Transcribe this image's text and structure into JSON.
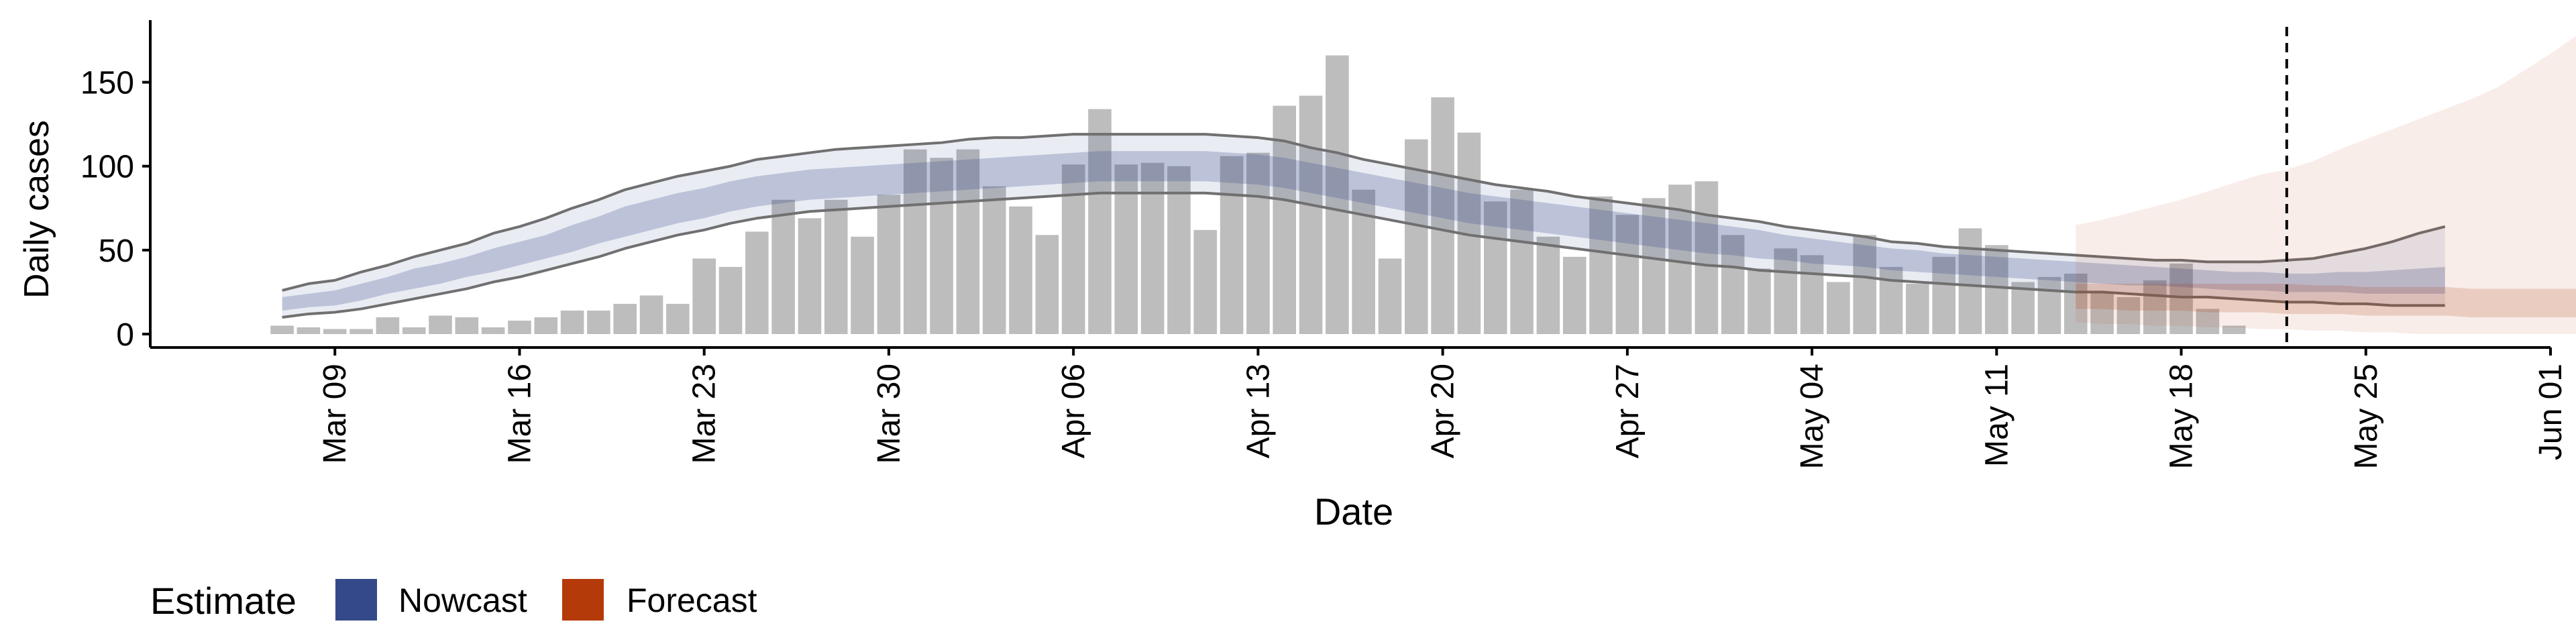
{
  "chart_data": {
    "type": "bar",
    "xlabel": "Date",
    "ylabel": "Daily cases",
    "x_ticks": [
      "Mar 09",
      "Mar 16",
      "Mar 23",
      "Mar 30",
      "Apr 06",
      "Apr 13",
      "Apr 20",
      "Apr 27",
      "May 04",
      "May 11",
      "May 18",
      "May 25",
      "Jun 01"
    ],
    "y_ticks": [
      0,
      50,
      100,
      150
    ],
    "ylim": [
      -8,
      187
    ],
    "xlim": [
      "2020-03-02",
      "2020-06-01"
    ],
    "forecast_date": "2020-05-22",
    "grid": false,
    "legend": {
      "title": "Estimate",
      "position": "bottom-left",
      "entries": [
        {
          "label": "Nowcast",
          "color": "#34498a"
        },
        {
          "label": "Forecast",
          "color": "#b43a0a"
        }
      ]
    },
    "colors": {
      "bars": "#bdbdbd",
      "nowcast": "#34498a",
      "forecast": "#b43a0a",
      "outline": "#707070"
    },
    "observed": {
      "start_date": "2020-03-07",
      "values": [
        5,
        4,
        3,
        3,
        10,
        4,
        11,
        10,
        4,
        8,
        10,
        14,
        14,
        18,
        23,
        18,
        45,
        40,
        61,
        80,
        69,
        80,
        58,
        83,
        110,
        105,
        110,
        88,
        76,
        59,
        101,
        134,
        101,
        102,
        100,
        62,
        106,
        108,
        136,
        142,
        166,
        86,
        45,
        116,
        141,
        120,
        79,
        86,
        58,
        46,
        82,
        71,
        81,
        89,
        91,
        59,
        39,
        51,
        47,
        31,
        59,
        40,
        30,
        46,
        63,
        53,
        31,
        34,
        36,
        25,
        22,
        32,
        42,
        15,
        5
      ]
    },
    "nowcast": {
      "start_date": "2020-03-07",
      "median": [
        18,
        20,
        21,
        25,
        29,
        33,
        36,
        40,
        44,
        48,
        52,
        57,
        62,
        67,
        71,
        75,
        78,
        82,
        85,
        87,
        89,
        90,
        91,
        92,
        93,
        94,
        95,
        96,
        97,
        98,
        99,
        100,
        100,
        100,
        100,
        100,
        99,
        98,
        96,
        93,
        90,
        87,
        84,
        81,
        78,
        75,
        73,
        71,
        69,
        67,
        65,
        63,
        61,
        59,
        57,
        55,
        53,
        51,
        49,
        47,
        46,
        44,
        43,
        42,
        41,
        40,
        39,
        38,
        37,
        36,
        35,
        34,
        33,
        32,
        31,
        31,
        30,
        30,
        30,
        30,
        30,
        30,
        30
      ],
      "lower_50": [
        14,
        16,
        17,
        20,
        24,
        27,
        30,
        34,
        37,
        41,
        45,
        49,
        54,
        58,
        62,
        66,
        69,
        73,
        76,
        78,
        80,
        81,
        82,
        83,
        84,
        85,
        86,
        87,
        88,
        89,
        90,
        91,
        91,
        91,
        91,
        91,
        90,
        89,
        87,
        84,
        81,
        78,
        75,
        72,
        69,
        66,
        64,
        62,
        60,
        58,
        56,
        54,
        52,
        50,
        48,
        47,
        45,
        44,
        42,
        41,
        40,
        38,
        37,
        36,
        35,
        34,
        33,
        32,
        31,
        30,
        29,
        29,
        28,
        27,
        26,
        26,
        25,
        25,
        25,
        24,
        24,
        24,
        24
      ],
      "upper_50": [
        22,
        24,
        26,
        30,
        34,
        39,
        42,
        46,
        51,
        55,
        59,
        65,
        70,
        76,
        80,
        84,
        87,
        91,
        94,
        96,
        98,
        99,
        100,
        101,
        102,
        103,
        104,
        105,
        106,
        107,
        108,
        109,
        109,
        109,
        109,
        109,
        108,
        107,
        105,
        102,
        99,
        96,
        93,
        90,
        87,
        84,
        82,
        80,
        78,
        76,
        74,
        72,
        70,
        68,
        66,
        64,
        62,
        59,
        57,
        55,
        53,
        51,
        50,
        48,
        47,
        46,
        45,
        44,
        43,
        42,
        41,
        40,
        39,
        38,
        37,
        37,
        36,
        36,
        37,
        37,
        38,
        39,
        40
      ],
      "lower_90": [
        10,
        12,
        13,
        15,
        18,
        21,
        24,
        27,
        31,
        34,
        38,
        42,
        46,
        51,
        55,
        59,
        62,
        66,
        69,
        71,
        73,
        74,
        75,
        76,
        77,
        78,
        79,
        80,
        81,
        82,
        83,
        84,
        84,
        84,
        84,
        84,
        83,
        82,
        80,
        77,
        74,
        71,
        68,
        65,
        62,
        59,
        57,
        55,
        53,
        51,
        49,
        47,
        45,
        43,
        41,
        40,
        38,
        37,
        36,
        35,
        34,
        32,
        31,
        30,
        29,
        28,
        27,
        26,
        25,
        25,
        24,
        23,
        22,
        22,
        21,
        20,
        19,
        19,
        18,
        18,
        17,
        17,
        17
      ],
      "upper_90": [
        26,
        30,
        32,
        37,
        41,
        46,
        50,
        54,
        60,
        64,
        69,
        75,
        80,
        86,
        90,
        94,
        97,
        100,
        104,
        106,
        108,
        110,
        111,
        112,
        113,
        114,
        116,
        117,
        117,
        118,
        119,
        119,
        119,
        119,
        119,
        119,
        118,
        117,
        115,
        111,
        108,
        104,
        101,
        98,
        95,
        92,
        89,
        87,
        85,
        82,
        80,
        78,
        76,
        74,
        71,
        69,
        67,
        64,
        62,
        60,
        58,
        55,
        54,
        52,
        51,
        50,
        49,
        48,
        47,
        46,
        45,
        44,
        44,
        43,
        43,
        43,
        44,
        45,
        48,
        51,
        55,
        60,
        64
      ]
    },
    "forecast": {
      "start_date": "2020-05-14",
      "median": [
        22,
        22,
        22,
        21,
        21,
        21,
        20,
        20,
        20,
        20,
        19,
        19,
        19,
        18,
        18,
        18,
        18,
        18,
        18,
        18
      ],
      "lower_50": [
        15,
        15,
        14,
        14,
        14,
        13,
        13,
        13,
        12,
        12,
        12,
        11,
        11,
        11,
        11,
        10,
        10,
        10,
        10,
        10
      ],
      "upper_50": [
        30,
        30,
        30,
        30,
        30,
        30,
        30,
        30,
        30,
        29,
        29,
        28,
        28,
        28,
        28,
        27,
        27,
        27,
        27,
        27
      ],
      "lower_90": [
        7,
        6,
        6,
        5,
        5,
        4,
        4,
        3,
        3,
        2,
        2,
        1,
        1,
        0,
        0,
        0,
        0,
        0,
        0,
        0
      ],
      "upper_90": [
        65,
        68,
        72,
        76,
        80,
        85,
        90,
        95,
        98,
        103,
        110,
        116,
        122,
        128,
        134,
        140,
        147,
        157,
        167,
        178
      ]
    }
  }
}
